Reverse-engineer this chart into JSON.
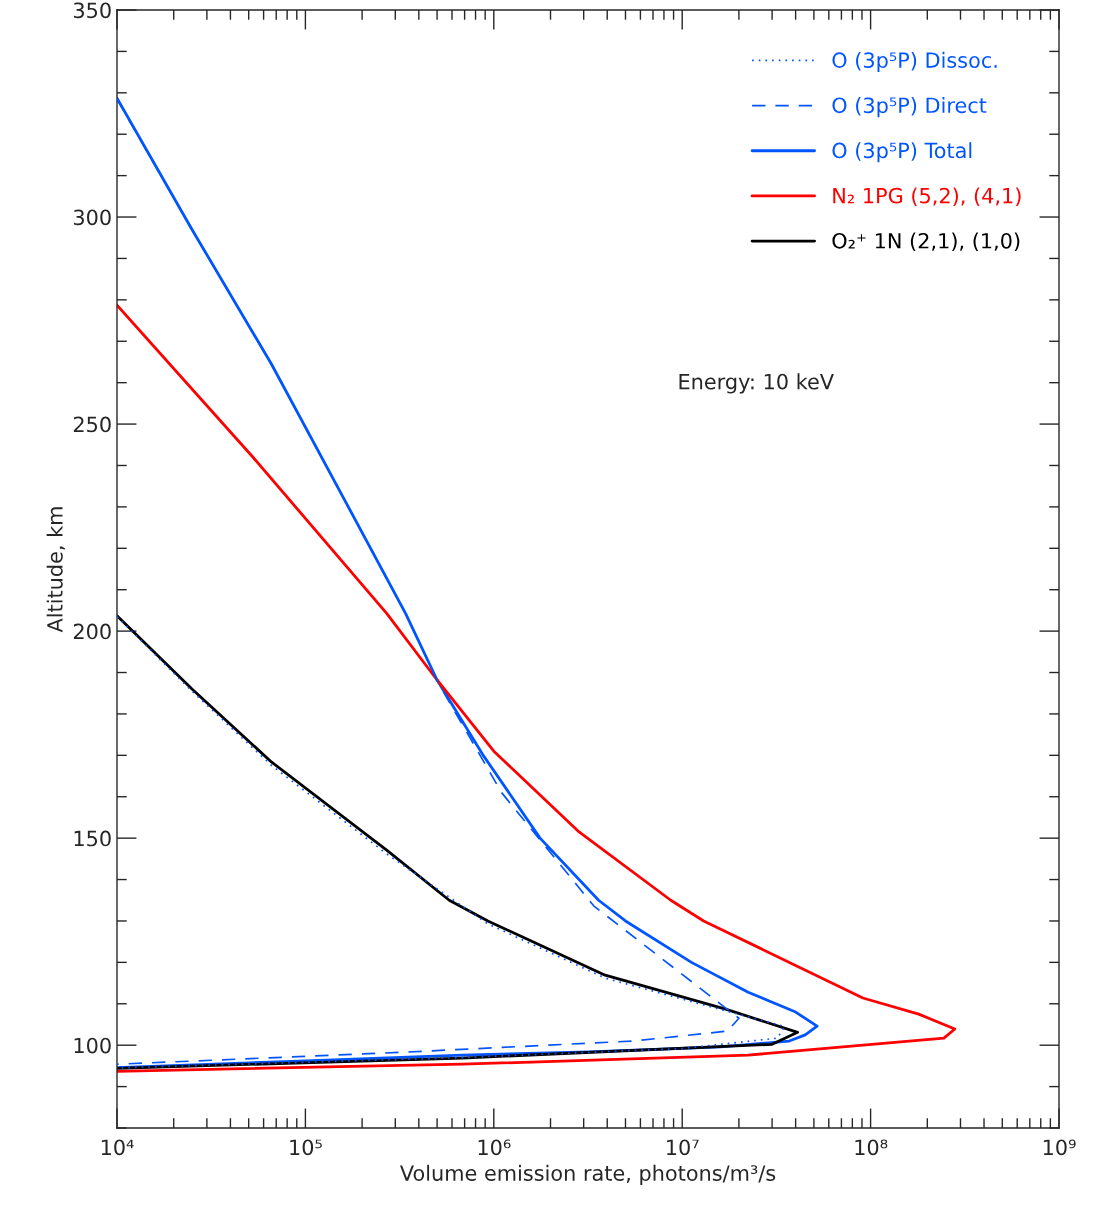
{
  "chart_data": {
    "type": "line",
    "xlabel": "Volume emission rate, photons/m³/s",
    "ylabel": "Altitude, km",
    "log": "x",
    "xlim": [
      10000,
      1000000000
    ],
    "ylim": [
      80,
      350
    ],
    "xticks": [
      {
        "value": 10000,
        "label": "10⁴"
      },
      {
        "value": 100000,
        "label": "10⁵"
      },
      {
        "value": 1000000,
        "label": "10⁶"
      },
      {
        "value": 10000000,
        "label": "10⁷"
      },
      {
        "value": 100000000,
        "label": "10⁸"
      },
      {
        "value": 1000000000,
        "label": "10⁹"
      }
    ],
    "yticks": [
      100,
      150,
      200,
      250,
      300,
      350
    ],
    "grid": false,
    "legend": "top right",
    "annotations": [
      "Energy: 10 keV"
    ],
    "series": [
      {
        "name": "O (3p⁵P) Dissoc.",
        "color": "#0055ff",
        "line_style": "dotted",
        "x": [
          10000,
          25000,
          66000,
          270000,
          930000,
          3900000,
          17000000,
          35000000,
          32000000,
          10000000,
          680000,
          10000
        ],
        "values": [
          203.5,
          185.5,
          167.6,
          146.2,
          129.3,
          116.2,
          108.3,
          104.5,
          101.7,
          99.2,
          97.0,
          94.5
        ]
      },
      {
        "name": "O (3p⁵P) Direct",
        "color": "#0055ff",
        "line_style": "dashed",
        "x": [
          10000,
          25000,
          66000,
          160000,
          340000,
          500000,
          1100000,
          3400000,
          15800000,
          20000000,
          17400000,
          5500000,
          330000,
          10000
        ],
        "values": [
          328.5,
          297,
          264.5,
          232,
          204.3,
          188,
          161,
          133.6,
          110.1,
          106.5,
          103.4,
          101,
          98.3,
          95.4
        ]
      },
      {
        "name": "O (3p⁵P) Total",
        "color": "#0055ff",
        "line_style": "solid",
        "x": [
          10000,
          25000,
          66000,
          160000,
          340000,
          500000,
          870000,
          1760000,
          3600000,
          5000000,
          11200000,
          22400000,
          40000000,
          52000000,
          45000000,
          37000000,
          16000000,
          3200000,
          680000,
          100000,
          10000
        ],
        "values": [
          328.7,
          297,
          264.5,
          232,
          204.3,
          188.2,
          170.3,
          150,
          135,
          130,
          120,
          112.8,
          108,
          104.6,
          102.5,
          101,
          99.6,
          98.4,
          97.6,
          96.2,
          94.6
        ]
      },
      {
        "name": "N₂ 1PG (5,2), (4,1)",
        "color": "#ff0000",
        "line_style": "solid",
        "x": [
          10000,
          52000,
          270000,
          500000,
          1000000,
          2800000,
          8700000,
          13000000,
          91000000,
          180000000,
          280000000,
          245000000,
          22400000,
          680000,
          10000
        ],
        "values": [
          278.7,
          242.3,
          204.3,
          188.2,
          171,
          151.7,
          135,
          130,
          111.4,
          107.5,
          103.9,
          101.7,
          97.6,
          95.4,
          93.7
        ]
      },
      {
        "name": "O₂⁺ 1N (2,1), (1,0)",
        "color": "#000000",
        "line_style": "solid",
        "x": [
          10000,
          25000,
          66000,
          270000,
          580000,
          930000,
          3900000,
          17000000,
          41000000,
          30000000,
          680000,
          10000
        ],
        "values": [
          203.7,
          186,
          168.4,
          147.1,
          135,
          130,
          116.9,
          108.7,
          103.1,
          100.2,
          96.9,
          94.4
        ]
      }
    ]
  }
}
